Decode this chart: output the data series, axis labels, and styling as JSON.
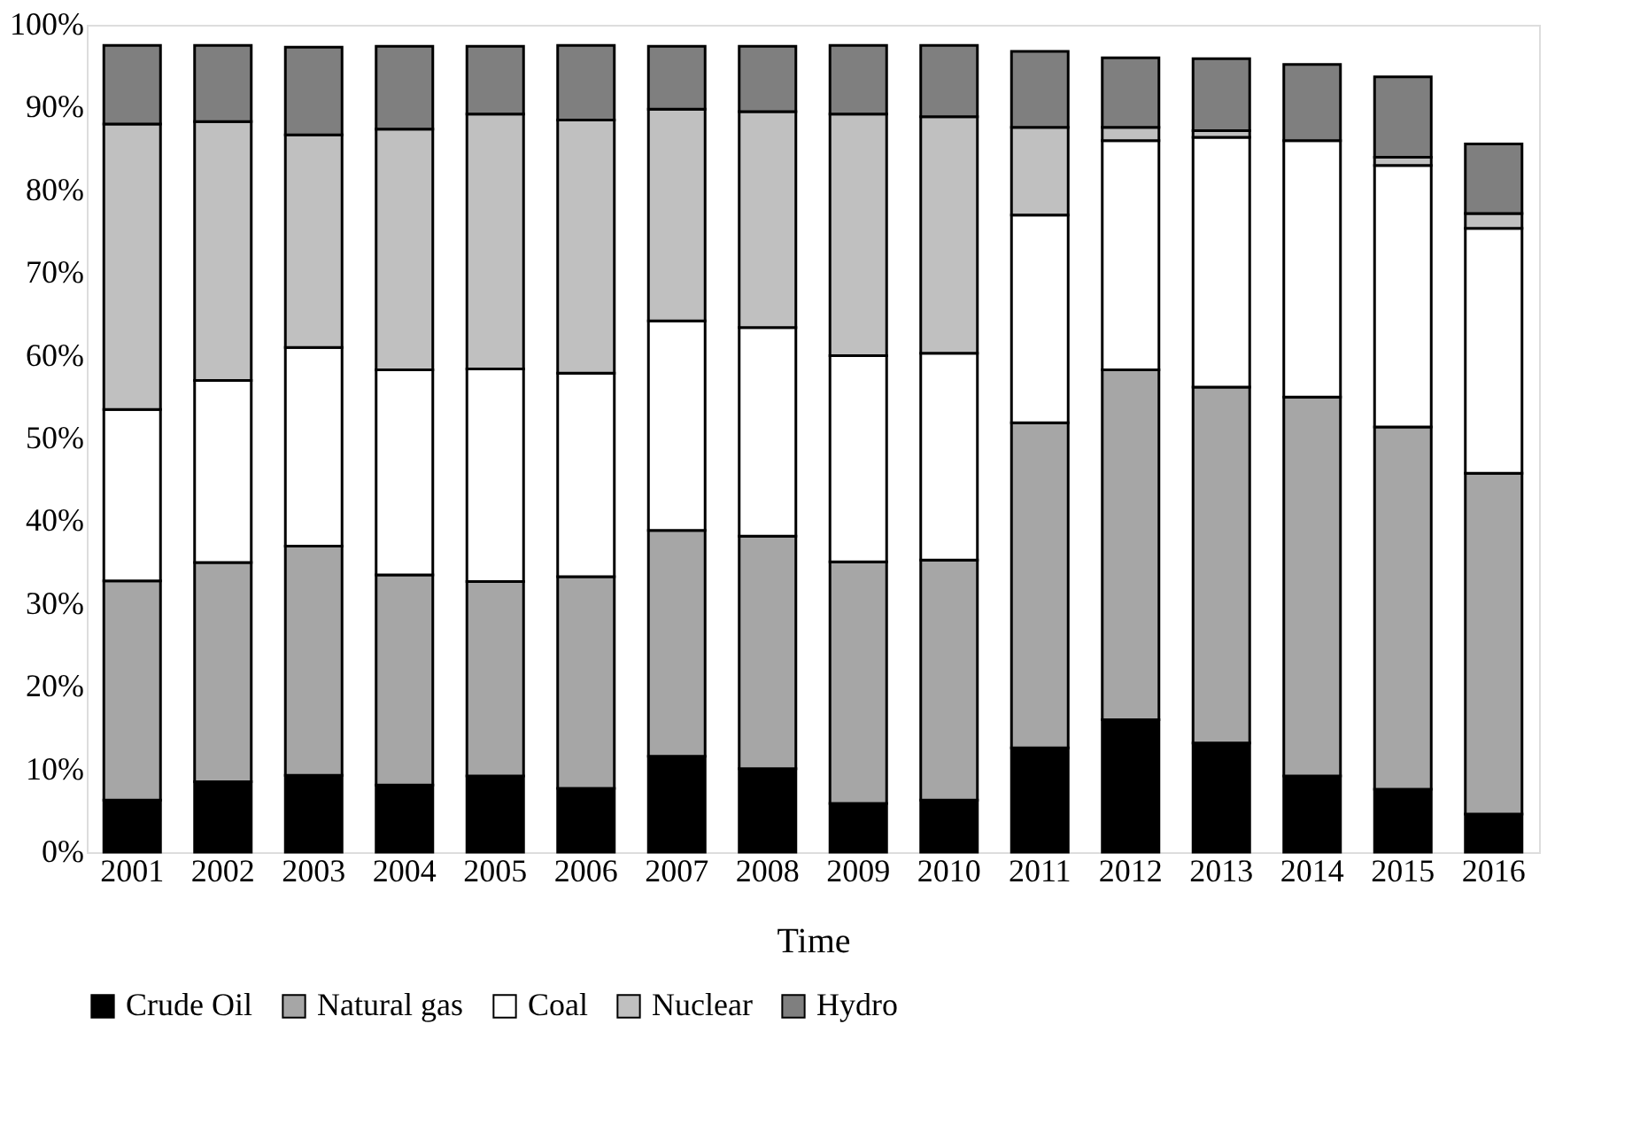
{
  "chart_data": {
    "type": "bar",
    "stacked": true,
    "xlabel": "Time",
    "categories": [
      "2001",
      "2002",
      "2003",
      "2004",
      "2005",
      "2006",
      "2007",
      "2008",
      "2009",
      "2010",
      "2011",
      "2012",
      "2013",
      "2014",
      "2015",
      "2016"
    ],
    "series": [
      {
        "name": "Crude Oil",
        "color": "#000000",
        "values": [
          6.3,
          8.5,
          9.3,
          8.1,
          9.2,
          7.7,
          11.6,
          10.1,
          5.9,
          6.3,
          12.6,
          16,
          13.2,
          9.2,
          7.6,
          4.6
        ]
      },
      {
        "name": "Natural gas",
        "color": "#a6a6a6",
        "values": [
          26.5,
          26.5,
          27.7,
          25.4,
          23.5,
          25.6,
          27.3,
          28.1,
          29.2,
          29,
          39.3,
          42.3,
          43,
          45.8,
          43.8,
          41.2
        ]
      },
      {
        "name": "Coal",
        "color": "#ffffff",
        "values": [
          20.7,
          22,
          24,
          24.8,
          25.7,
          24.6,
          25.3,
          25.2,
          24.9,
          25,
          25.1,
          27.7,
          30.2,
          31,
          31.6,
          29.6
        ]
      },
      {
        "name": "Nuclear",
        "color": "#c0c0c0",
        "values": [
          34.5,
          31.3,
          25.7,
          29.1,
          30.8,
          30.6,
          25.6,
          26.1,
          29.2,
          28.6,
          10.6,
          1.6,
          0.8,
          null,
          1,
          1.8
        ]
      },
      {
        "name": "Hydro",
        "color": "#7f7f7f",
        "values": [
          9.5,
          9.2,
          10.6,
          10,
          8.2,
          9,
          7.6,
          7.9,
          8.3,
          8.6,
          9.2,
          8.4,
          8.7,
          9.2,
          9.7,
          8.4
        ]
      }
    ],
    "ylim": [
      0,
      100
    ],
    "yticks": [
      {
        "value": 0,
        "label": "0%"
      },
      {
        "value": 10,
        "label": "10%"
      },
      {
        "value": 20,
        "label": "20%"
      },
      {
        "value": 30,
        "label": "30%"
      },
      {
        "value": 40,
        "label": "40%"
      },
      {
        "value": 50,
        "label": "50%"
      },
      {
        "value": 60,
        "label": "60%"
      },
      {
        "value": 70,
        "label": "70%"
      },
      {
        "value": 80,
        "label": "80%"
      },
      {
        "value": 90,
        "label": "90%"
      },
      {
        "value": 100,
        "label": "100%"
      }
    ],
    "grid": false,
    "legend": "bottom"
  }
}
